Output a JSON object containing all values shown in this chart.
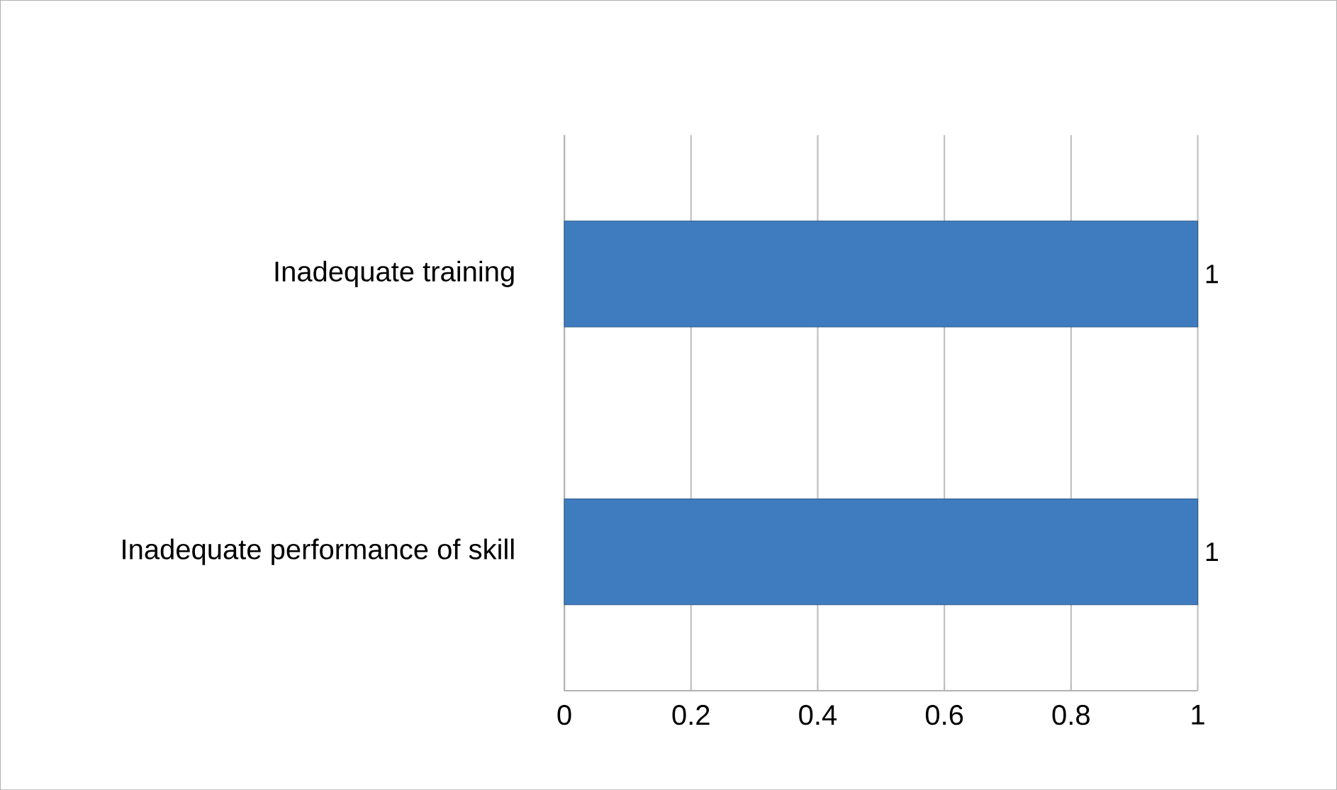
{
  "chart_data": {
    "type": "bar",
    "orientation": "horizontal",
    "categories": [
      "Inadequate training",
      "Inadequate performance of skill"
    ],
    "values": [
      1,
      1
    ],
    "color": "#3f7cbf",
    "data_labels": true,
    "xlim": [
      0,
      1
    ],
    "xticks": [
      0,
      0.2,
      0.4,
      0.6,
      0.8,
      1
    ],
    "grid": "x"
  }
}
